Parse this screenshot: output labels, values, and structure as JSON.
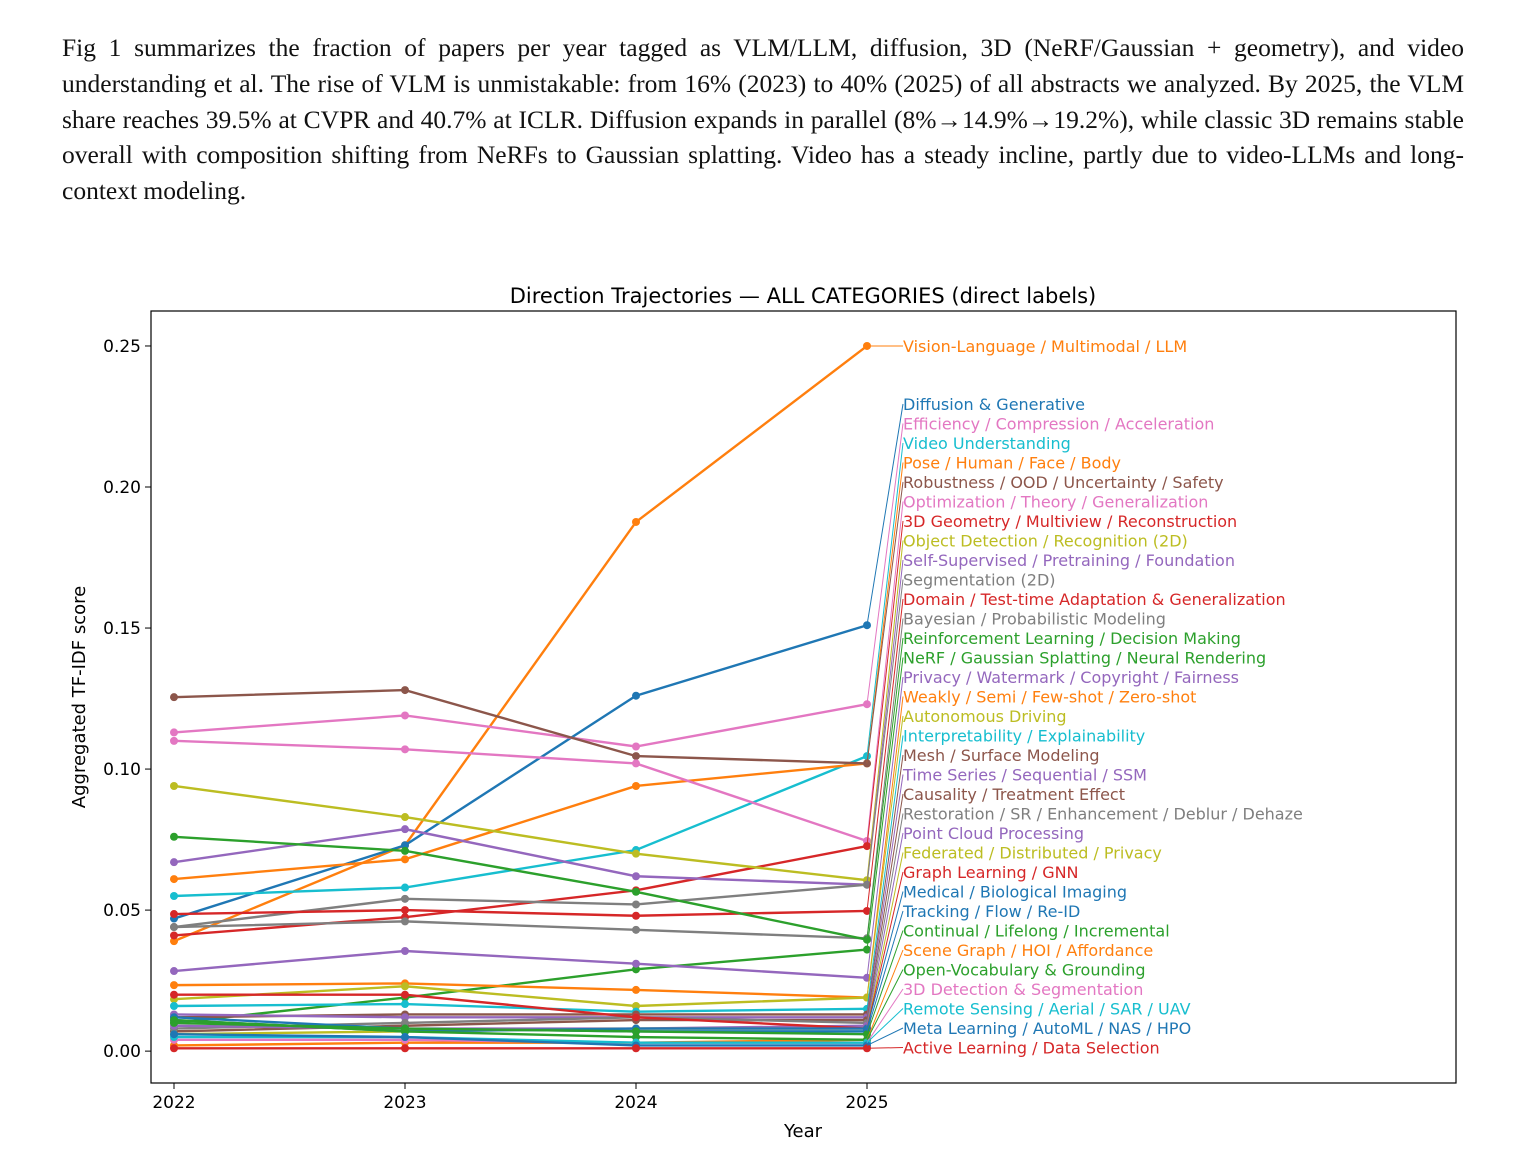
{
  "paragraph": "Fig 1 summarizes the fraction of papers per year tagged as VLM/LLM, diffusion, 3D (NeRF/Gaussian + geometry), and video understanding et al. The rise of VLM is unmistakable: from 16% (2023) to 40% (2025) of all abstracts we analyzed. By 2025, the VLM share reaches 39.5% at CVPR and 40.7% at ICLR. Diffusion expands in parallel (8%→14.9%→19.2%), while classic 3D remains stable overall with composition shifting from NeRFs to Gaussian splatting. Video has a steady incline, partly due to video-LLMs and long-context modeling.",
  "chart_data": {
    "type": "line",
    "title": "Direction Trajectories — ALL CATEGORIES (direct labels)",
    "xlabel": "Year",
    "ylabel": "Aggregated TF-IDF score",
    "x": [
      2022,
      2023,
      2024,
      2025
    ],
    "x_ticks": [
      "2022",
      "2023",
      "2024",
      "2025"
    ],
    "y_ticks": [
      "0.00",
      "0.05",
      "0.10",
      "0.15",
      "0.20",
      "0.25"
    ],
    "ylim": [
      -0.0113,
      0.2624
    ],
    "grid": false,
    "legend": "direct labels at right",
    "series": [
      {
        "name": "Vision-Language / Multimodal / LLM",
        "color": "#ff7f0e",
        "values": [
          0.039,
          0.073,
          0.1876,
          0.25
        ]
      },
      {
        "name": "Diffusion & Generative",
        "color": "#1f77b4",
        "values": [
          0.047,
          0.073,
          0.126,
          0.151
        ]
      },
      {
        "name": "Efficiency / Compression / Acceleration",
        "color": "#e377c2",
        "values": [
          0.113,
          0.119,
          0.108,
          0.123
        ]
      },
      {
        "name": "Video Understanding",
        "color": "#17becf",
        "values": [
          0.055,
          0.058,
          0.0713,
          0.1046
        ]
      },
      {
        "name": "Pose / Human / Face / Body",
        "color": "#ff7f0e",
        "values": [
          0.061,
          0.068,
          0.094,
          0.102
        ]
      },
      {
        "name": "Robustness / OOD / Uncertainty / Safety",
        "color": "#8c564b",
        "values": [
          0.1255,
          0.128,
          0.1046,
          0.102
        ]
      },
      {
        "name": "Optimization / Theory / Generalization",
        "color": "#e377c2",
        "values": [
          0.11,
          0.107,
          0.102,
          0.0745
        ]
      },
      {
        "name": "3D Geometry / Multiview / Reconstruction",
        "color": "#d62728",
        "values": [
          0.041,
          0.0475,
          0.057,
          0.0727
        ]
      },
      {
        "name": "Object Detection / Recognition (2D)",
        "color": "#bcbd22",
        "values": [
          0.094,
          0.083,
          0.07,
          0.0606
        ]
      },
      {
        "name": "Self-Supervised / Pretraining / Foundation",
        "color": "#9467bd",
        "values": [
          0.067,
          0.0787,
          0.062,
          0.059
        ]
      },
      {
        "name": "Segmentation (2D)",
        "color": "#7f7f7f",
        "values": [
          0.044,
          0.054,
          0.052,
          0.059
        ]
      },
      {
        "name": "Domain / Test-time Adaptation & Generalization",
        "color": "#d62728",
        "values": [
          0.0486,
          0.05,
          0.048,
          0.0497
        ]
      },
      {
        "name": "Bayesian / Probabilistic Modeling",
        "color": "#7f7f7f",
        "values": [
          0.044,
          0.046,
          0.043,
          0.04
        ]
      },
      {
        "name": "Reinforcement Learning / Decision Making",
        "color": "#2ca02c",
        "values": [
          0.076,
          0.071,
          0.0565,
          0.0395
        ]
      },
      {
        "name": "NeRF / Gaussian Splatting / Neural Rendering",
        "color": "#2ca02c",
        "values": [
          0.01,
          0.019,
          0.029,
          0.036
        ]
      },
      {
        "name": "Privacy / Watermark / Copyright / Fairness",
        "color": "#9467bd",
        "values": [
          0.0284,
          0.0355,
          0.031,
          0.026
        ]
      },
      {
        "name": "Weakly / Semi / Few-shot / Zero-shot",
        "color": "#ff7f0e",
        "values": [
          0.0234,
          0.024,
          0.0217,
          0.019
        ]
      },
      {
        "name": "Autonomous Driving",
        "color": "#bcbd22",
        "values": [
          0.0184,
          0.023,
          0.016,
          0.019
        ]
      },
      {
        "name": "Interpretability / Explainability",
        "color": "#17becf",
        "values": [
          0.016,
          0.0167,
          0.014,
          0.015
        ]
      },
      {
        "name": "Mesh / Surface Modeling",
        "color": "#8c564b",
        "values": [
          0.012,
          0.013,
          0.013,
          0.013
        ]
      },
      {
        "name": "Time Series / Sequential / SSM",
        "color": "#9467bd",
        "values": [
          0.013,
          0.012,
          0.012,
          0.012
        ]
      },
      {
        "name": "Causality / Treatment Effect",
        "color": "#8c564b",
        "values": [
          0.007,
          0.009,
          0.011,
          0.011
        ]
      },
      {
        "name": "Restoration / SR / Enhancement / Deblur / Dehaze",
        "color": "#7f7f7f",
        "values": [
          0.008,
          0.01,
          0.012,
          0.01
        ]
      },
      {
        "name": "Point Cloud Processing",
        "color": "#9467bd",
        "values": [
          0.009,
          0.008,
          0.008,
          0.009
        ]
      },
      {
        "name": "Federated / Distributed / Privacy",
        "color": "#bcbd22",
        "values": [
          0.006,
          0.007,
          0.008,
          0.008
        ]
      },
      {
        "name": "Graph Learning / GNN",
        "color": "#d62728",
        "values": [
          0.02,
          0.02,
          0.012,
          0.008
        ]
      },
      {
        "name": "Medical / Biological Imaging",
        "color": "#1f77b4",
        "values": [
          0.011,
          0.007,
          0.008,
          0.008
        ]
      },
      {
        "name": "Tracking / Flow / Re-ID",
        "color": "#1f77b4",
        "values": [
          0.012,
          0.008,
          0.007,
          0.007
        ]
      },
      {
        "name": "Continual / Lifelong / Incremental",
        "color": "#2ca02c",
        "values": [
          0.01,
          0.008,
          0.007,
          0.006
        ]
      },
      {
        "name": "Scene Graph / HOI / Affordance",
        "color": "#ff7f0e",
        "values": [
          0.002,
          0.003,
          0.003,
          0.004
        ]
      },
      {
        "name": "Open-Vocabulary & Grounding",
        "color": "#2ca02c",
        "values": [
          0.011,
          0.007,
          0.005,
          0.004
        ]
      },
      {
        "name": "3D Detection & Segmentation",
        "color": "#e377c2",
        "values": [
          0.004,
          0.004,
          0.003,
          0.003
        ]
      },
      {
        "name": "Remote Sensing / Aerial / SAR / UAV",
        "color": "#17becf",
        "values": [
          0.005,
          0.005,
          0.003,
          0.003
        ]
      },
      {
        "name": "Meta Learning / AutoML / NAS / HPO",
        "color": "#1f77b4",
        "values": [
          0.006,
          0.005,
          0.002,
          0.002
        ]
      },
      {
        "name": "Active Learning / Data Selection",
        "color": "#d62728",
        "values": [
          0.001,
          0.001,
          0.001,
          0.001
        ]
      }
    ]
  }
}
